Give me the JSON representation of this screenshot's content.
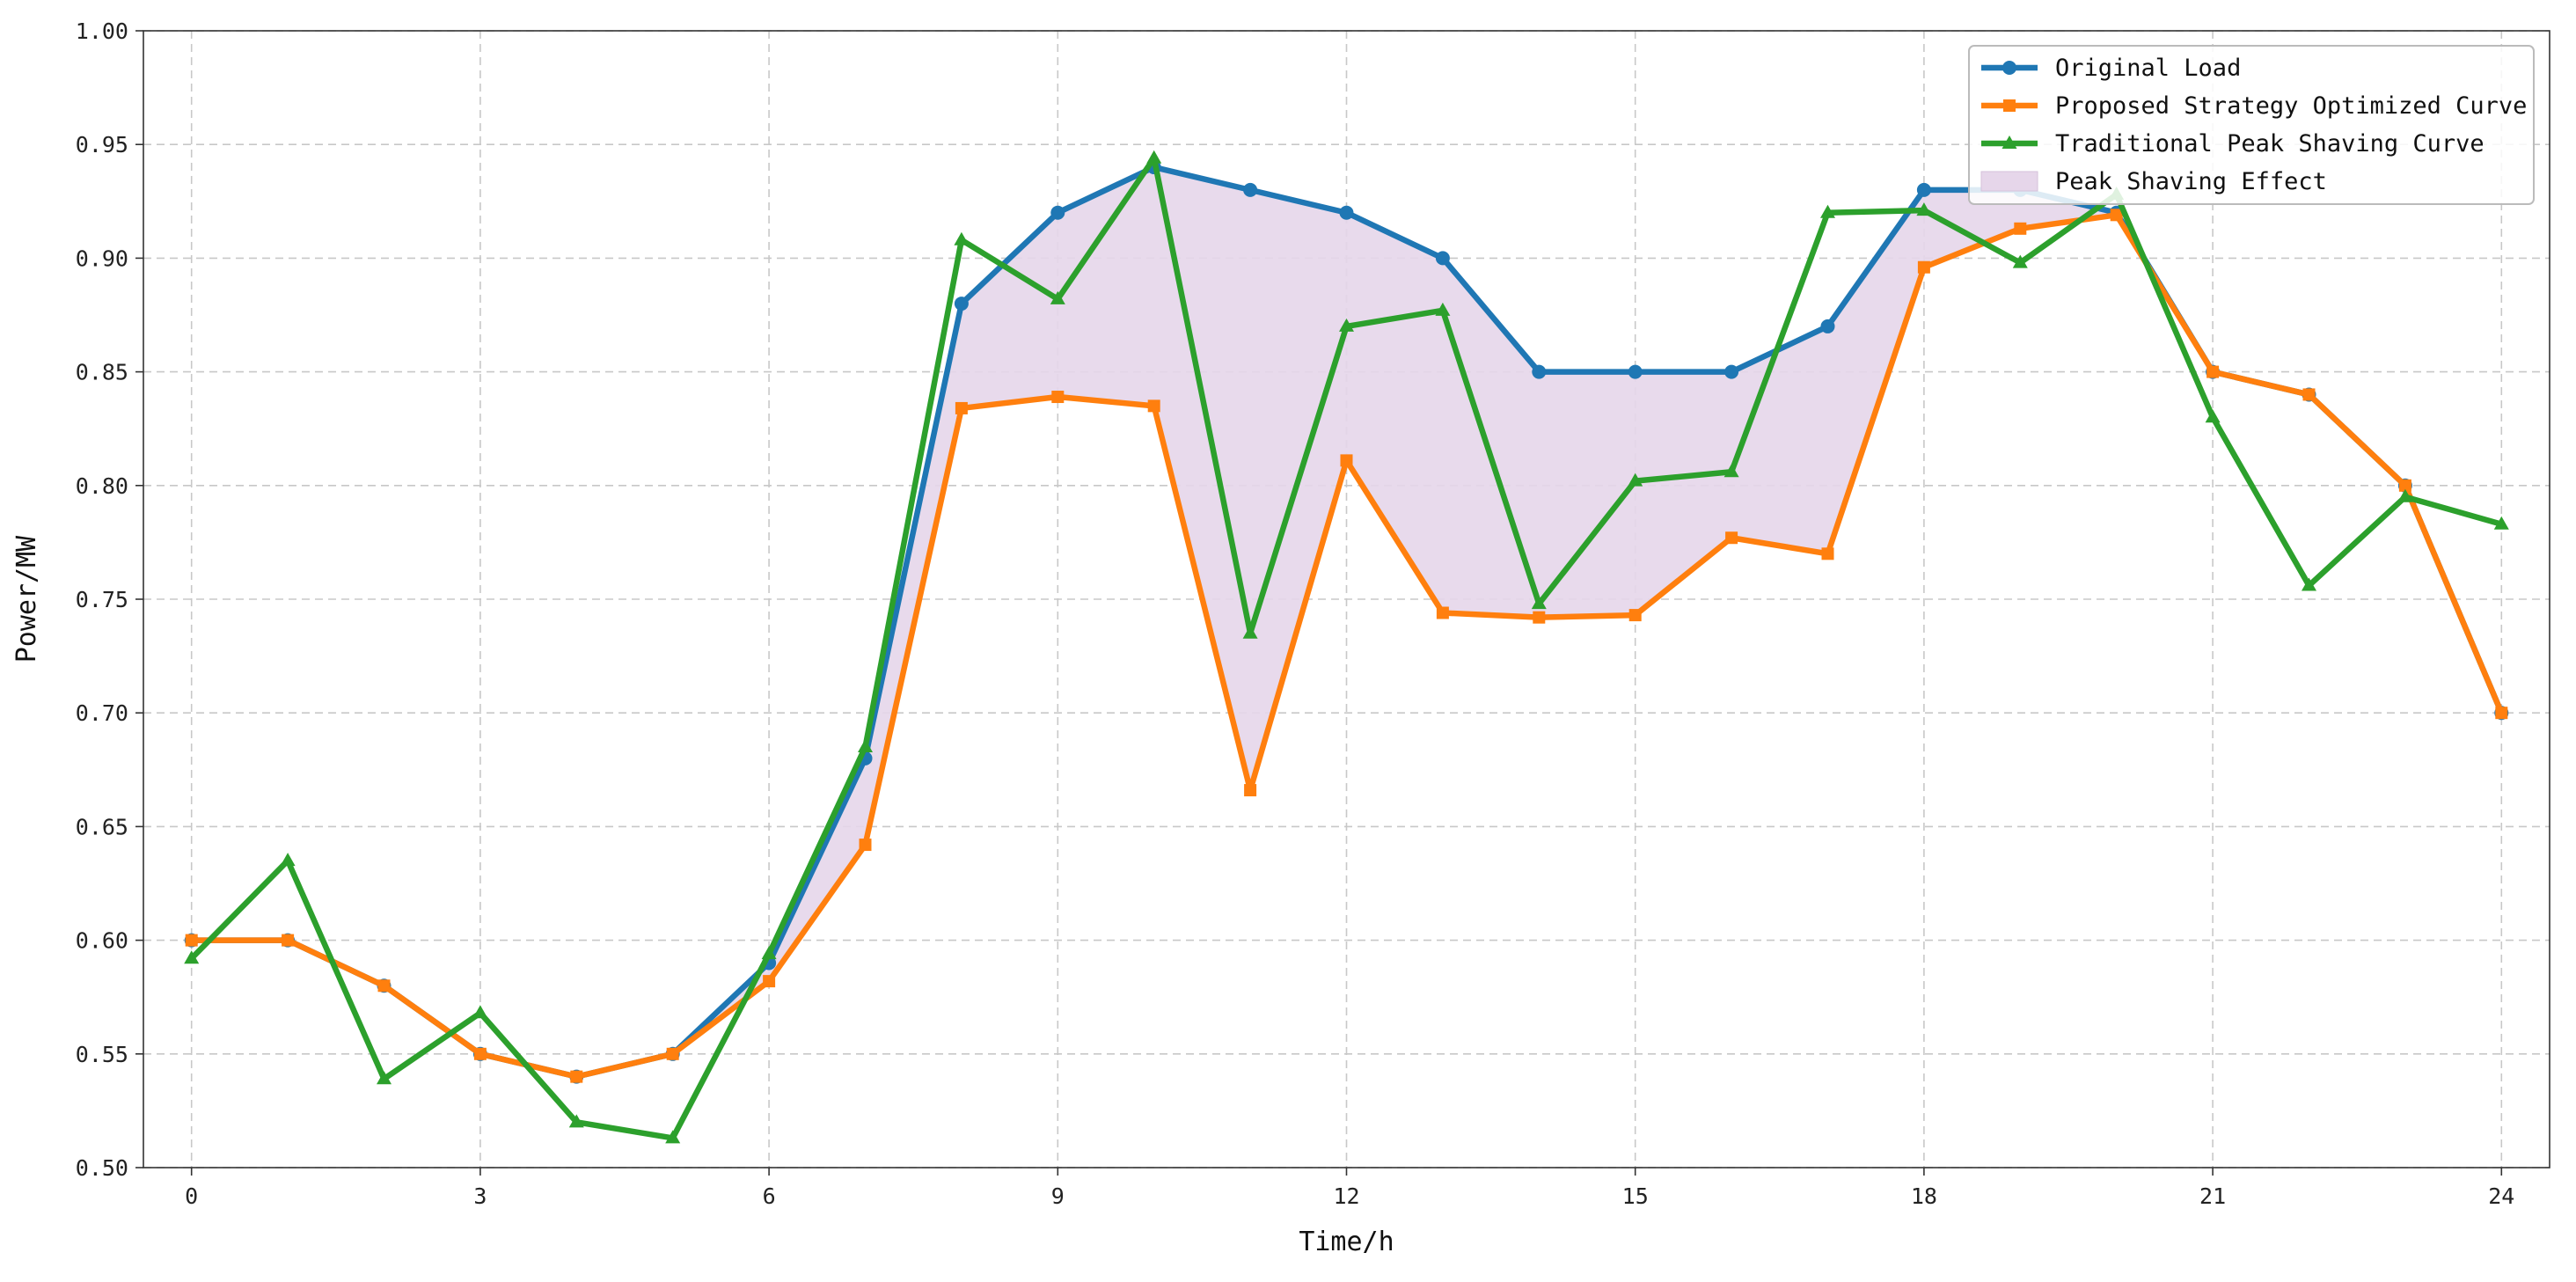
{
  "chart_data": {
    "type": "line",
    "xlabel": "Time/h",
    "ylabel": "Power/MW",
    "xlim": [
      -0.5,
      24.5
    ],
    "ylim": [
      0.5,
      1.0
    ],
    "xticks": [
      0,
      3,
      6,
      9,
      12,
      15,
      18,
      21,
      24
    ],
    "yticks": [
      0.5,
      0.55,
      0.6,
      0.65,
      0.7,
      0.75,
      0.8,
      0.85,
      0.9,
      0.95,
      1.0
    ],
    "grid": true,
    "legend_position": "top-right",
    "x": [
      0,
      1,
      2,
      3,
      4,
      5,
      6,
      7,
      8,
      9,
      10,
      11,
      12,
      13,
      14,
      15,
      16,
      17,
      18,
      19,
      20,
      21,
      22,
      23,
      24
    ],
    "series": [
      {
        "name": "Original Load",
        "color": "#1f77b4",
        "marker": "circle",
        "values": [
          0.6,
          0.6,
          0.58,
          0.55,
          0.54,
          0.55,
          0.59,
          0.68,
          0.88,
          0.92,
          0.94,
          0.93,
          0.92,
          0.9,
          0.85,
          0.85,
          0.85,
          0.87,
          0.93,
          0.93,
          0.92,
          0.85,
          0.84,
          0.8,
          0.7
        ]
      },
      {
        "name": "Proposed Strategy Optimized Curve",
        "color": "#ff7f0e",
        "marker": "square",
        "values": [
          0.6,
          0.6,
          0.58,
          0.55,
          0.54,
          0.55,
          0.582,
          0.642,
          0.834,
          0.839,
          0.835,
          0.666,
          0.811,
          0.744,
          0.742,
          0.743,
          0.777,
          0.77,
          0.896,
          0.913,
          0.919,
          0.85,
          0.84,
          0.8,
          0.7
        ]
      },
      {
        "name": "Traditional Peak Shaving Curve",
        "color": "#2ca02c",
        "marker": "triangle",
        "values": [
          0.592,
          0.635,
          0.539,
          0.568,
          0.52,
          0.513,
          0.594,
          0.685,
          0.908,
          0.882,
          0.944,
          0.735,
          0.87,
          0.877,
          0.748,
          0.802,
          0.806,
          0.92,
          0.921,
          0.898,
          0.928,
          0.83,
          0.756,
          0.795,
          0.783
        ]
      }
    ],
    "fill": {
      "name": "Peak Shaving Effect",
      "color": "#e6d6ea",
      "between": [
        "Original Load",
        "Proposed Strategy Optimized Curve"
      ]
    }
  }
}
